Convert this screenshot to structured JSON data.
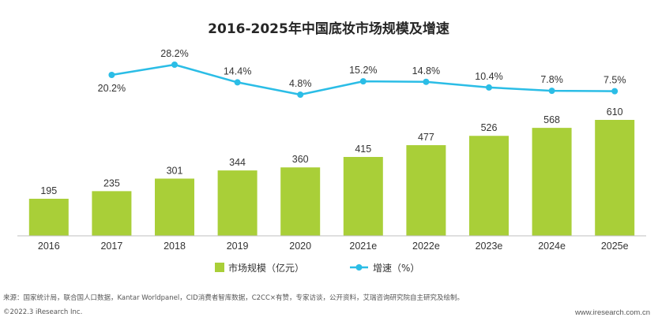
{
  "colors": {
    "bar": "#a9cf38",
    "line": "#2bbde6",
    "axis": "#bfbfbf",
    "title": "#262626"
  },
  "chart_data": {
    "type": "bar+line",
    "title": "2016-2025年中国底妆市场规模及增速",
    "categories": [
      "2016",
      "2017",
      "2018",
      "2019",
      "2020",
      "2021e",
      "2022e",
      "2023e",
      "2024e",
      "2025e"
    ],
    "series": [
      {
        "name": "市场规模（亿元）",
        "type": "bar",
        "values": [
          195,
          235,
          301,
          344,
          360,
          415,
          477,
          526,
          568,
          610
        ],
        "labels": [
          "195",
          "235",
          "301",
          "344",
          "360",
          "415",
          "477",
          "526",
          "568",
          "610"
        ]
      },
      {
        "name": "增速（%）",
        "type": "line",
        "values": [
          null,
          20.2,
          28.2,
          14.4,
          4.8,
          15.2,
          14.8,
          10.4,
          7.8,
          7.5
        ],
        "labels": [
          "",
          "20.2%",
          "28.2%",
          "14.4%",
          "4.8%",
          "15.2%",
          "14.8%",
          "10.4%",
          "7.8%",
          "7.5%"
        ]
      }
    ],
    "legend_position": "bottom"
  },
  "footer": {
    "source": "来源：国家统计局，联合国人口数据，Kantar Worldpanel，CID消费者智库数据，C2CC×有赞，专家访谈，公开资料，艾瑞咨询研究院自主研究及绘制。",
    "copyright": "©2022.3 iResearch Inc.",
    "url": "www.iresearch.com.cn"
  }
}
